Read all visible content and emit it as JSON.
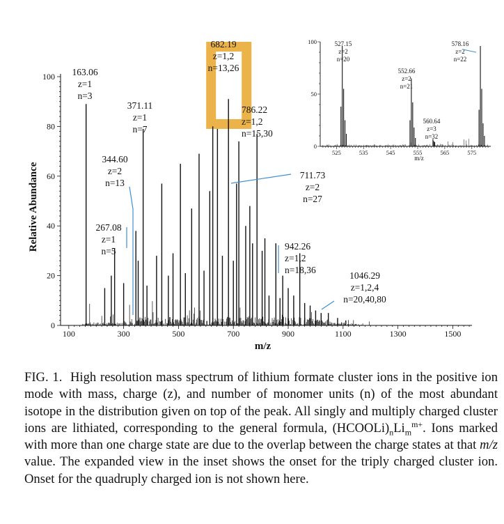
{
  "chart_data": [
    {
      "type": "mass-spectrum",
      "panel": "main",
      "xlabel": "m/z",
      "ylabel": "Relative Abundance",
      "xlim": [
        70,
        1570
      ],
      "ylim": [
        0,
        100
      ],
      "xticks": [
        100,
        300,
        500,
        700,
        900,
        1100,
        1300,
        1500
      ],
      "yticks": [
        0,
        20,
        40,
        60,
        80,
        100
      ],
      "peaks": [
        {
          "mz": 163.06,
          "value": 89
        },
        {
          "mz": 231,
          "value": 15
        },
        {
          "mz": 255,
          "value": 20
        },
        {
          "mz": 267.08,
          "value": 31
        },
        {
          "mz": 300,
          "value": 17
        },
        {
          "mz": 344.6,
          "value": 38
        },
        {
          "mz": 353,
          "value": 26
        },
        {
          "mz": 371.11,
          "value": 79
        },
        {
          "mz": 385,
          "value": 16
        },
        {
          "mz": 420,
          "value": 28
        },
        {
          "mz": 439,
          "value": 57
        },
        {
          "mz": 463,
          "value": 20
        },
        {
          "mz": 480,
          "value": 29
        },
        {
          "mz": 507,
          "value": 65
        },
        {
          "mz": 525,
          "value": 21
        },
        {
          "mz": 548,
          "value": 47
        },
        {
          "mz": 575,
          "value": 69
        },
        {
          "mz": 593,
          "value": 22
        },
        {
          "mz": 614,
          "value": 54
        },
        {
          "mz": 625,
          "value": 80
        },
        {
          "mz": 642,
          "value": 79
        },
        {
          "mz": 660,
          "value": 28
        },
        {
          "mz": 682.19,
          "value": 91
        },
        {
          "mz": 700,
          "value": 26
        },
        {
          "mz": 711.73,
          "value": 57
        },
        {
          "mz": 720,
          "value": 74
        },
        {
          "mz": 745,
          "value": 40
        },
        {
          "mz": 760,
          "value": 48
        },
        {
          "mz": 770,
          "value": 33
        },
        {
          "mz": 786.22,
          "value": 77
        },
        {
          "mz": 805,
          "value": 30
        },
        {
          "mz": 815,
          "value": 35
        },
        {
          "mz": 830,
          "value": 12
        },
        {
          "mz": 855,
          "value": 33
        },
        {
          "mz": 870,
          "value": 11
        },
        {
          "mz": 880,
          "value": 20
        },
        {
          "mz": 900,
          "value": 15
        },
        {
          "mz": 920,
          "value": 12
        },
        {
          "mz": 942.26,
          "value": 29
        },
        {
          "mz": 960,
          "value": 9
        },
        {
          "mz": 980,
          "value": 8
        },
        {
          "mz": 1000,
          "value": 6
        },
        {
          "mz": 1020,
          "value": 5
        },
        {
          "mz": 1046.29,
          "value": 5
        },
        {
          "mz": 1080,
          "value": 3
        },
        {
          "mz": 1110,
          "value": 2
        }
      ],
      "labels": [
        {
          "mz_text": "163.06",
          "z_text": "z=1",
          "n_text": "n=3"
        },
        {
          "mz_text": "267.08",
          "z_text": "z=1",
          "n_text": "n=5"
        },
        {
          "mz_text": "344.60",
          "z_text": "z=2",
          "n_text": "n=13"
        },
        {
          "mz_text": "371.11",
          "z_text": "z=1",
          "n_text": "n=7"
        },
        {
          "mz_text": "682.19",
          "z_text": "z=1,2",
          "n_text": "n=13,26"
        },
        {
          "mz_text": "786.22",
          "z_text": "z=1,2",
          "n_text": "n=15,30"
        },
        {
          "mz_text": "711.73",
          "z_text": "z=2",
          "n_text": "n=27"
        },
        {
          "mz_text": "942.26",
          "z_text": "z=1,2",
          "n_text": "n=18,36"
        },
        {
          "mz_text": "1046.29",
          "z_text": "z=1,2,4",
          "n_text": "n=20,40,80"
        }
      ],
      "highlight": {
        "mz": 682.19,
        "color": "#e8a62a"
      }
    },
    {
      "type": "mass-spectrum",
      "panel": "inset",
      "xlabel": "m/z",
      "xlim": [
        519,
        582
      ],
      "ylim": [
        0,
        100
      ],
      "xticks": [
        525,
        535,
        545,
        555,
        565,
        575
      ],
      "yticks": [
        0,
        50,
        100
      ],
      "peaks": [
        {
          "mz": 527.15,
          "value": 96
        },
        {
          "mz": 527.65,
          "value": 55
        },
        {
          "mz": 526.65,
          "value": 38
        },
        {
          "mz": 528.15,
          "value": 25
        },
        {
          "mz": 528.65,
          "value": 12
        },
        {
          "mz": 552.66,
          "value": 65
        },
        {
          "mz": 553.16,
          "value": 42
        },
        {
          "mz": 552.16,
          "value": 25
        },
        {
          "mz": 553.66,
          "value": 18
        },
        {
          "mz": 554.16,
          "value": 8
        },
        {
          "mz": 560.64,
          "value": 7
        },
        {
          "mz": 560.97,
          "value": 5
        },
        {
          "mz": 561.3,
          "value": 4
        },
        {
          "mz": 578.16,
          "value": 96
        },
        {
          "mz": 578.66,
          "value": 55
        },
        {
          "mz": 577.66,
          "value": 35
        },
        {
          "mz": 579.16,
          "value": 22
        },
        {
          "mz": 579.66,
          "value": 10
        }
      ],
      "labels": [
        {
          "mz_text": "527.15",
          "z_text": "z=2",
          "n_text": "n=20"
        },
        {
          "mz_text": "552.66",
          "z_text": "z=2",
          "n_text": "n=21"
        },
        {
          "mz_text": "560.64",
          "z_text": "z=3",
          "n_text": "n=32"
        },
        {
          "mz_text": "578.16",
          "z_text": "z=2",
          "n_text": "n=22"
        }
      ]
    }
  ],
  "caption": {
    "fig_label": "FIG. 1.",
    "text_1": "High resolution mass spectrum of lithium formate cluster ions in the positive ion mode with mass, charge (z), and number of monomer units (n) of the most abundant isotope in the distribution given on top of the peak. All singly and multiply charged cluster ions are lithiated, corresponding to the general formula, (HCOOLi)",
    "sub_n": "n",
    "formula_li": "Li",
    "sub_m": "m",
    "sup_charge": "m+",
    "text_2": ". Ions marked with more than one charge state are due to the overlap between the charge states at that",
    "mz_italic": "m/z",
    "text_3": "value. The expanded view in the inset shows the onset for the triply charged cluster ion. Onset for the quadruply charged ion is not shown here."
  },
  "colors": {
    "accent": "#e8a62a",
    "leader": "#3f8fd0",
    "ink": "#111111"
  }
}
